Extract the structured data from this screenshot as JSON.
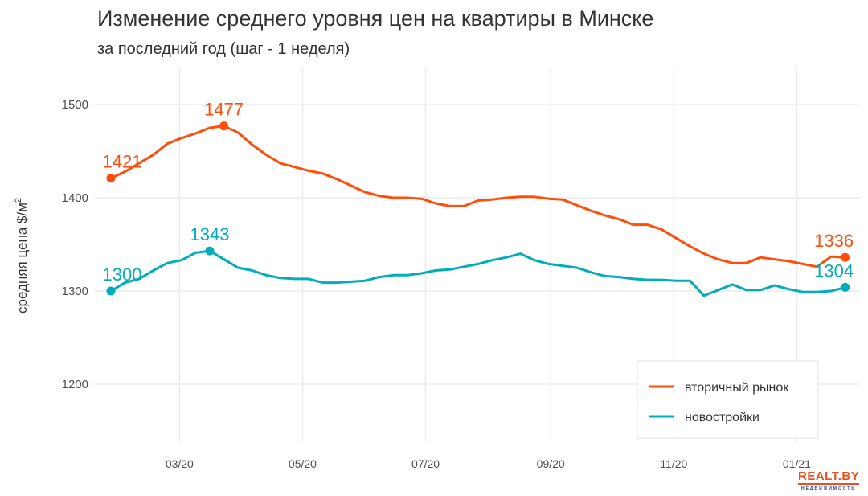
{
  "chart_data": {
    "type": "line",
    "title": "Изменение среднего уровня цен на квартиры в Минске",
    "subtitle": "за последний год (шаг - 1 неделя)",
    "xlabel": "",
    "ylabel": "средняя цена $/м",
    "ylabel_sup": "2",
    "ylim": [
      1140,
      1540
    ],
    "yticks": [
      1200,
      1300,
      1400,
      1500
    ],
    "xticks": [
      {
        "date": "2020-03-01",
        "label": "03/20"
      },
      {
        "date": "2020-05-01",
        "label": "05/20"
      },
      {
        "date": "2020-07-01",
        "label": "07/20"
      },
      {
        "date": "2020-09-01",
        "label": "09/20"
      },
      {
        "date": "2020-11-01",
        "label": "11/20"
      },
      {
        "date": "2021-01-01",
        "label": "01/21"
      }
    ],
    "grid": true,
    "legend_position": "bottom-right",
    "x": [
      "2020-01-27",
      "2020-02-03",
      "2020-02-10",
      "2020-02-17",
      "2020-02-24",
      "2020-03-02",
      "2020-03-09",
      "2020-03-16",
      "2020-03-23",
      "2020-03-30",
      "2020-04-06",
      "2020-04-13",
      "2020-04-20",
      "2020-04-27",
      "2020-05-04",
      "2020-05-11",
      "2020-05-18",
      "2020-05-25",
      "2020-06-01",
      "2020-06-08",
      "2020-06-15",
      "2020-06-22",
      "2020-06-29",
      "2020-07-06",
      "2020-07-13",
      "2020-07-20",
      "2020-07-27",
      "2020-08-03",
      "2020-08-10",
      "2020-08-17",
      "2020-08-24",
      "2020-08-31",
      "2020-09-07",
      "2020-09-14",
      "2020-09-21",
      "2020-09-28",
      "2020-10-05",
      "2020-10-12",
      "2020-10-19",
      "2020-10-26",
      "2020-11-02",
      "2020-11-09",
      "2020-11-16",
      "2020-11-23",
      "2020-11-30",
      "2020-12-07",
      "2020-12-14",
      "2020-12-21",
      "2020-12-28",
      "2021-01-04",
      "2021-01-11",
      "2021-01-18",
      "2021-01-25"
    ],
    "series": [
      {
        "name": "вторичный рынок",
        "color": "#ff4e0a",
        "values": [
          1421,
          1428,
          1437,
          1446,
          1458,
          1464,
          1469,
          1475,
          1477,
          1470,
          1457,
          1446,
          1437,
          1433,
          1429,
          1426,
          1420,
          1413,
          1406,
          1402,
          1400,
          1400,
          1399,
          1394,
          1391,
          1391,
          1397,
          1398,
          1400,
          1401,
          1401,
          1399,
          1398,
          1392,
          1386,
          1381,
          1377,
          1371,
          1371,
          1366,
          1357,
          1348,
          1340,
          1334,
          1330,
          1330,
          1336,
          1334,
          1332,
          1329,
          1326,
          1337,
          1336
        ],
        "labels": [
          {
            "index": 0,
            "text": "1421"
          },
          {
            "index": 8,
            "text": "1477"
          },
          {
            "index": 52,
            "text": "1336"
          }
        ]
      },
      {
        "name": "новостройки",
        "color": "#00adb8",
        "values": [
          1300,
          1309,
          1313,
          1322,
          1330,
          1333,
          1341,
          1343,
          1334,
          1325,
          1322,
          1317,
          1314,
          1313,
          1313,
          1309,
          1309,
          1310,
          1311,
          1315,
          1317,
          1317,
          1319,
          1322,
          1323,
          1326,
          1329,
          1333,
          1336,
          1340,
          1333,
          1329,
          1327,
          1325,
          1320,
          1316,
          1315,
          1313,
          1312,
          1312,
          1311,
          1311,
          1295,
          1301,
          1307,
          1301,
          1301,
          1306,
          1302,
          1299,
          1299,
          1300,
          1304
        ],
        "labels": [
          {
            "index": 0,
            "text": "1300"
          },
          {
            "index": 7,
            "text": "1343"
          },
          {
            "index": 52,
            "text": "1304"
          }
        ]
      }
    ]
  },
  "logo": {
    "main": "REALT.BY",
    "sub": "НЕДВИЖИМОСТЬ"
  }
}
